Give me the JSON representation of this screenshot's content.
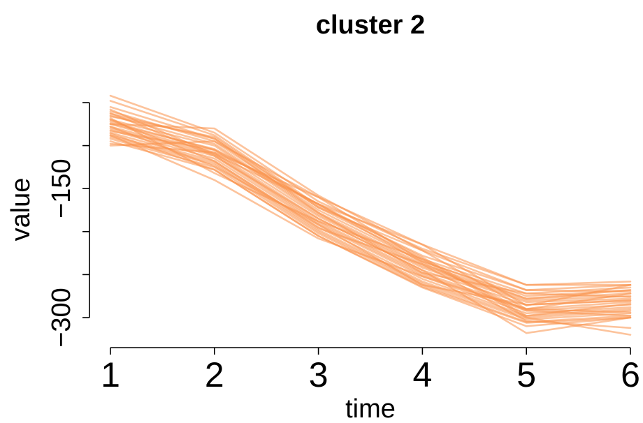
{
  "chart_data": {
    "type": "line",
    "title": "cluster 2",
    "xlabel": "time",
    "ylabel": "value",
    "x": [
      1,
      2,
      3,
      4,
      5,
      6
    ],
    "x_ticks": [
      "1",
      "2",
      "3",
      "4",
      "5",
      "6"
    ],
    "y_ticks": [
      {
        "value": -300,
        "label": "−300"
      },
      {
        "value": -150,
        "label": "−150"
      }
    ],
    "y_minor_ticks": [
      -300,
      -250,
      -200,
      -150,
      -100,
      -50
    ],
    "xlim": [
      1,
      6
    ],
    "ylim": [
      -310,
      -30
    ],
    "grid": false,
    "line_color": "#f9914b",
    "line_opacity": 0.55,
    "series": [
      {
        "values": [
          -42,
          -85,
          -165,
          -220,
          -262,
          -258
        ]
      },
      {
        "values": [
          -48,
          -88,
          -170,
          -228,
          -268,
          -262
        ]
      },
      {
        "values": [
          -55,
          -92,
          -172,
          -232,
          -272,
          -265
        ]
      },
      {
        "values": [
          -60,
          -95,
          -175,
          -235,
          -275,
          -268
        ]
      },
      {
        "values": [
          -65,
          -98,
          -178,
          -238,
          -278,
          -272
        ]
      },
      {
        "values": [
          -70,
          -100,
          -180,
          -240,
          -280,
          -275
        ]
      },
      {
        "values": [
          -72,
          -105,
          -182,
          -242,
          -282,
          -278
        ]
      },
      {
        "values": [
          -75,
          -108,
          -185,
          -245,
          -285,
          -280
        ]
      },
      {
        "values": [
          -78,
          -110,
          -188,
          -248,
          -290,
          -282
        ]
      },
      {
        "values": [
          -80,
          -112,
          -190,
          -250,
          -292,
          -285
        ]
      },
      {
        "values": [
          -82,
          -115,
          -192,
          -252,
          -295,
          -288
        ]
      },
      {
        "values": [
          -85,
          -118,
          -195,
          -255,
          -298,
          -290
        ]
      },
      {
        "values": [
          -88,
          -120,
          -198,
          -258,
          -300,
          -292
        ]
      },
      {
        "values": [
          -90,
          -122,
          -200,
          -260,
          -302,
          -295
        ]
      },
      {
        "values": [
          -92,
          -125,
          -202,
          -262,
          -305,
          -298
        ]
      },
      {
        "values": [
          -95,
          -128,
          -205,
          -265,
          -310,
          -300
        ]
      },
      {
        "values": [
          -100,
          -95,
          -160,
          -215,
          -262,
          -262
        ]
      },
      {
        "values": [
          -75,
          -80,
          -158,
          -222,
          -268,
          -270
        ]
      },
      {
        "values": [
          -68,
          -132,
          -188,
          -232,
          -300,
          -320
        ]
      },
      {
        "values": [
          -88,
          -140,
          -208,
          -252,
          -290,
          -272
        ]
      },
      {
        "values": [
          -58,
          -110,
          -168,
          -236,
          -292,
          -298
        ]
      },
      {
        "values": [
          -63,
          -92,
          -178,
          -248,
          -272,
          -276
        ]
      },
      {
        "values": [
          -78,
          -124,
          -192,
          -262,
          -285,
          -280
        ]
      },
      {
        "values": [
          -70,
          -118,
          -196,
          -238,
          -304,
          -312
        ]
      },
      {
        "values": [
          -83,
          -105,
          -168,
          -230,
          -298,
          -284
        ]
      },
      {
        "values": [
          -66,
          -90,
          -172,
          -222,
          -290,
          -294
        ]
      },
      {
        "values": [
          -98,
          -108,
          -160,
          -234,
          -278,
          -268
        ]
      },
      {
        "values": [
          -86,
          -128,
          -205,
          -264,
          -306,
          -300
        ]
      },
      {
        "values": [
          -74,
          -104,
          -168,
          -215,
          -286,
          -262
        ]
      },
      {
        "values": [
          -62,
          -112,
          -185,
          -245,
          -318,
          -300
        ]
      }
    ]
  }
}
